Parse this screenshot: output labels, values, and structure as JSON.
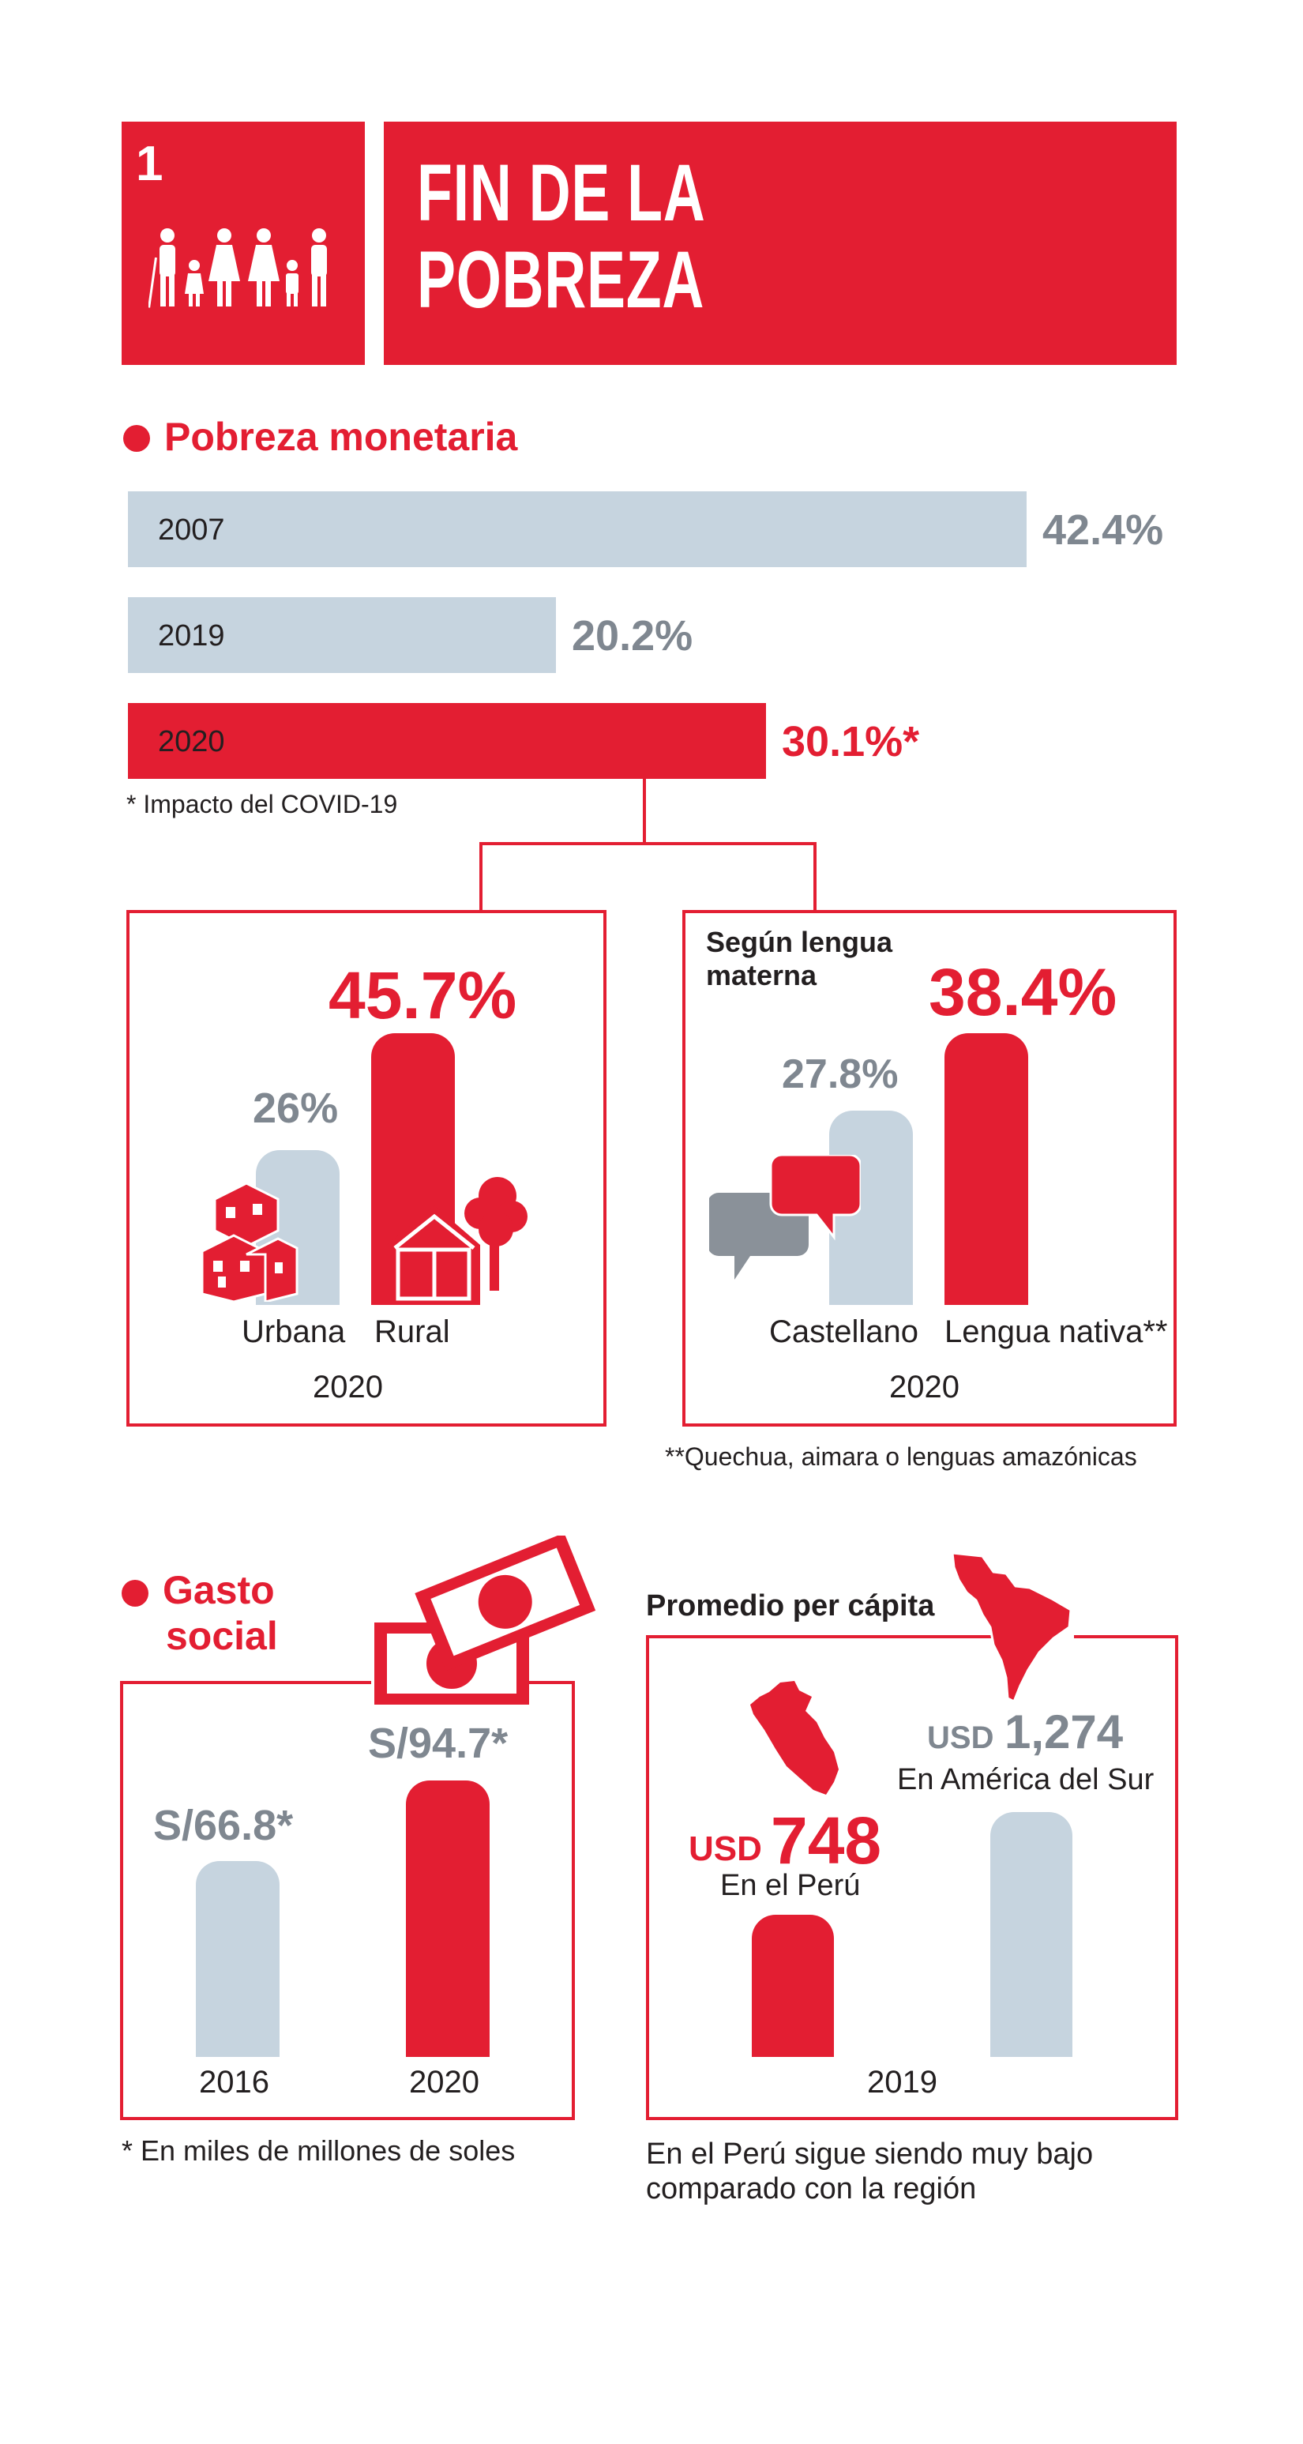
{
  "header": {
    "number": "1",
    "title_line1": "FIN DE LA",
    "title_line2": "POBREZA"
  },
  "pobreza": {
    "heading": "Pobreza monetaria",
    "footnote": "* Impacto del COVID-19",
    "area_box": {
      "urbana_value": "26%",
      "rural_value": "45.7%",
      "urbana_label": "Urbana",
      "rural_label": "Rural",
      "year": "2020"
    },
    "lengua_box": {
      "title_line1": "Según lengua",
      "title_line2": "materna",
      "castellano_value": "27.8%",
      "nativa_value": "38.4%",
      "castellano_label": "Castellano",
      "nativa_label": "Lengua nativa**",
      "year": "2020",
      "footnote": "**Quechua, aimara o lenguas amazónicas"
    }
  },
  "gasto": {
    "heading_line1": "Gasto",
    "heading_line2": "social",
    "v2016": "S/66.8*",
    "v2020": "S/94.7*",
    "label2016": "2016",
    "label2020": "2020",
    "footnote": "* En miles de millones de soles"
  },
  "percapita": {
    "title": "Promedio per cápita",
    "peru_currency": "USD",
    "peru_number": "748",
    "peru_label": "En el Perú",
    "sa_currency": "USD",
    "sa_number": "1,274",
    "sa_label": "En América del Sur",
    "year": "2019",
    "caption_line1": "En el Perú sigue siendo muy bajo",
    "caption_line2": "comparado con la región"
  },
  "chart_data": [
    {
      "type": "bar",
      "orientation": "horizontal",
      "title": "Pobreza monetaria",
      "categories": [
        "2007",
        "2019",
        "2020"
      ],
      "values": [
        42.4,
        20.2,
        30.1
      ],
      "value_labels": [
        "42.4%",
        "20.2%",
        "30.1%*"
      ],
      "colors": [
        "#c6d4df",
        "#c6d4df",
        "#e31e32"
      ]
    },
    {
      "type": "bar",
      "title": "",
      "categories": [
        "Urbana",
        "Rural"
      ],
      "values": [
        26,
        45.7
      ],
      "xlabel": "2020"
    },
    {
      "type": "bar",
      "title": "Según lengua materna",
      "categories": [
        "Castellano",
        "Lengua nativa**"
      ],
      "values": [
        27.8,
        38.4
      ],
      "xlabel": "2020"
    },
    {
      "type": "bar",
      "title": "Gasto social",
      "categories": [
        "2016",
        "2020"
      ],
      "values": [
        66.8,
        94.7
      ]
    },
    {
      "type": "bar",
      "title": "Promedio per cápita",
      "categories": [
        "En el Perú",
        "En América del Sur"
      ],
      "values": [
        748,
        1274
      ],
      "xlabel": "2019"
    }
  ],
  "colors": {
    "red": "#e31e32",
    "light_blue": "#c6d4df",
    "grey": "#7f8790",
    "icon_grey": "#8a9199"
  },
  "icons": [
    "family-icon",
    "buildings-icon",
    "house-tree-icon",
    "speech-bubbles-icon",
    "money-bills-icon",
    "peru-map-icon",
    "south-america-map-icon"
  ]
}
